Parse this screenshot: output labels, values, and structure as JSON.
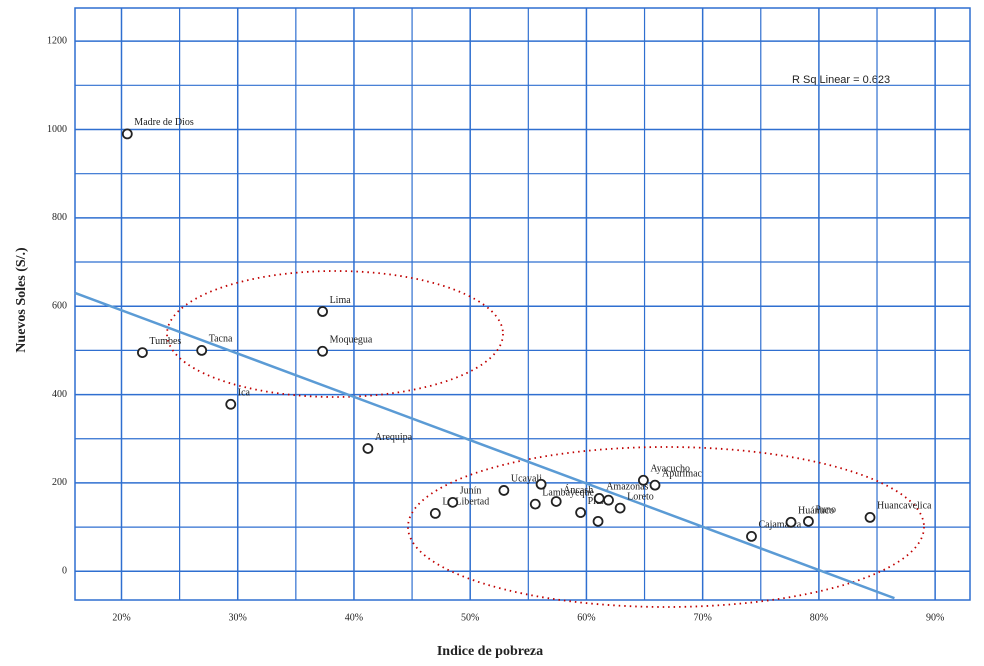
{
  "chart_data": {
    "type": "scatter",
    "y_label": "Nuevos Soles (S/.)",
    "x_label": "Indice de pobreza",
    "annotation": "R Sq Linear = 0.623",
    "xlim": [
      16,
      93
    ],
    "ylim": [
      -65,
      1275
    ],
    "xticks": [
      {
        "value": 20,
        "label": "20%"
      },
      {
        "value": 30,
        "label": "30%"
      },
      {
        "value": 40,
        "label": "40%"
      },
      {
        "value": 50,
        "label": "50%"
      },
      {
        "value": 60,
        "label": "60%"
      },
      {
        "value": 70,
        "label": "70%"
      },
      {
        "value": 80,
        "label": "80%"
      },
      {
        "value": 90,
        "label": "90%"
      }
    ],
    "yticks": [
      0,
      200,
      400,
      600,
      800,
      1000,
      1200
    ],
    "grid": true,
    "color": "#222222",
    "grid_color": "#2f6fd0",
    "trend_color": "#5b9bd5",
    "x": [
      20.5,
      21.8,
      26.9,
      29.4,
      37.3,
      37.3,
      41.2,
      47.0,
      48.5,
      52.9,
      55.6,
      56.1,
      57.4,
      59.5,
      61.1,
      61.0,
      61.9,
      62.9,
      64.9,
      65.9,
      74.2,
      77.6,
      79.1,
      84.4
    ],
    "y": [
      990,
      495,
      500,
      378,
      588,
      498,
      278,
      131,
      156,
      183,
      152,
      197,
      158,
      133,
      165,
      113,
      161,
      143,
      206,
      195,
      79,
      111,
      113,
      122
    ],
    "labels": [
      "Madre de Dios",
      "Tumbes",
      "Tacna",
      "Ica",
      "Lima",
      "Moquegua",
      "Arequipa",
      "La Libertad",
      "Junín",
      "Ucayali",
      "Lambayeque",
      null,
      "Áncash",
      "Piura",
      "Amazonas",
      null,
      null,
      "Loreto",
      "Ayacucho",
      "Apurímac",
      "Cajamarca",
      "Huánuco",
      "Puno",
      "Huancavelica"
    ],
    "trend": {
      "x": [
        16,
        86.5
      ],
      "y": [
        630,
        -61
      ]
    }
  }
}
